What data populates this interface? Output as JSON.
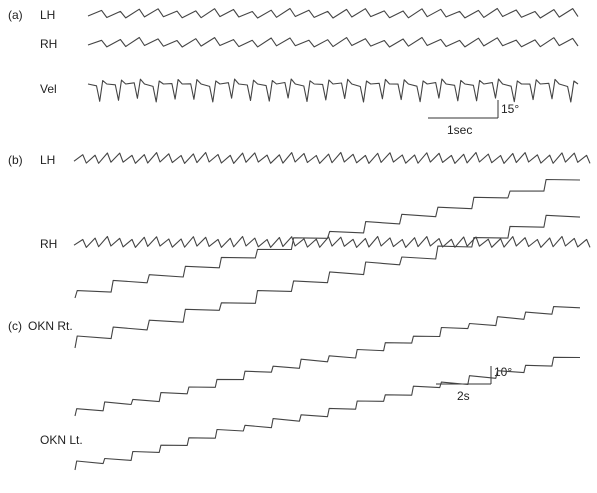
{
  "panels": [
    {
      "tag": "(a)",
      "traces": [
        {
          "label": "LH",
          "kind": "saw",
          "beats": 26
        },
        {
          "label": "RH",
          "kind": "saw",
          "beats": 26
        },
        {
          "label": "Vel",
          "kind": "vel",
          "beats": 26
        }
      ],
      "scale": {
        "amplitude": "15°",
        "time": "1sec"
      }
    },
    {
      "tag": "(b)",
      "traces": [
        {
          "label": "LH",
          "kind": "saw",
          "beats": 42
        },
        {
          "label": "RH",
          "kind": "saw",
          "beats": 42
        }
      ]
    },
    {
      "tag": "(c)",
      "traces": [
        {
          "label": "",
          "kind": "okn_flat",
          "beats": 14
        },
        {
          "label": "OKN Rt.",
          "kind": "okn_flat",
          "beats": 14
        },
        {
          "label": "",
          "kind": "okn_drift",
          "beats": 18
        },
        {
          "label": "OKN Lt.",
          "kind": "okn_drift",
          "beats": 18
        }
      ],
      "scale": {
        "amplitude": "10°",
        "time": "2s"
      }
    }
  ]
}
